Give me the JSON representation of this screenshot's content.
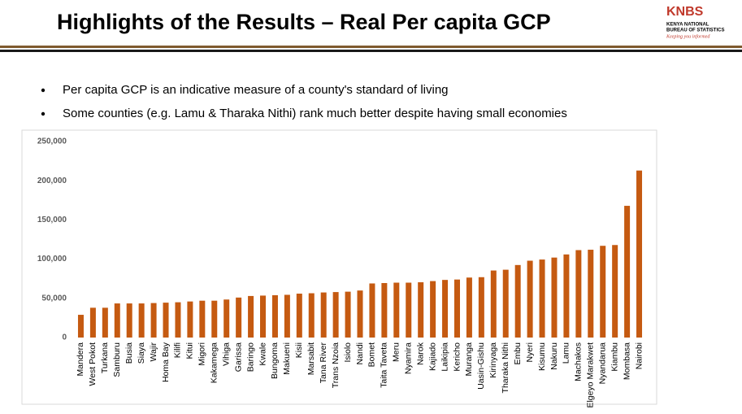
{
  "title": "Highlights of the Results – Real Per capita GCP",
  "bullets": [
    "Per capita GCP is an indicative measure of a county's standard of living",
    "Some counties (e.g. Lamu & Tharaka Nithi) rank much better despite having small economies"
  ],
  "logo": {
    "name": "KNBS",
    "line1": "KENYA NATIONAL",
    "line2": "BUREAU OF STATISTICS",
    "motto": "Keeping you informed"
  },
  "chart_data": {
    "type": "bar",
    "categories": [
      "Mandera",
      "West Pokot",
      "Turkana",
      "Samburu",
      "Busia",
      "Siaya",
      "Wajir",
      "Homa Bay",
      "Kilifi",
      "Kitui",
      "Migori",
      "Kakamega",
      "Vihiga",
      "Garissa",
      "Baringo",
      "Kwale",
      "Bungoma",
      "Makueni",
      "Kisii",
      "Marsabit",
      "Tana River",
      "Trans Nzoia",
      "Isiolo",
      "Nandi",
      "Bomet",
      "Taita Taveta",
      "Meru",
      "Nyamira",
      "Narok",
      "Kajiado",
      "Laikipia",
      "Kericho",
      "Muranga",
      "Uasin-Gishu",
      "Kirinyaga",
      "Tharaka Nithi",
      "Embu",
      "Nyeri",
      "Kisumu",
      "Nakuru",
      "Lamu",
      "Machakos",
      "Elgeyo Marakwet",
      "Nyandarua",
      "Kiambu",
      "Mombasa",
      "Nairobi"
    ],
    "values": [
      29000,
      38000,
      38000,
      43500,
      43500,
      43500,
      44000,
      44500,
      45000,
      46000,
      47000,
      47000,
      48500,
      51000,
      53000,
      53500,
      54000,
      54500,
      56000,
      56500,
      57500,
      58000,
      58500,
      60000,
      69000,
      69500,
      70000,
      70000,
      70500,
      72000,
      73500,
      74000,
      76500,
      77000,
      85500,
      86500,
      92500,
      98000,
      99500,
      102000,
      106000,
      111500,
      112000,
      117000,
      118000,
      168000,
      213000
    ],
    "color": "#c55a11",
    "ylim": [
      0,
      250000
    ],
    "yticks": [
      0,
      {
        "value": 50000,
        "label": "50,000"
      },
      {
        "value": 100000,
        "label": "100,000"
      },
      {
        "value": 150000,
        "label": "150,000"
      },
      {
        "value": 200000,
        "label": "200,000"
      },
      {
        "value": 250000,
        "label": "250,000"
      }
    ],
    "grid": false
  }
}
